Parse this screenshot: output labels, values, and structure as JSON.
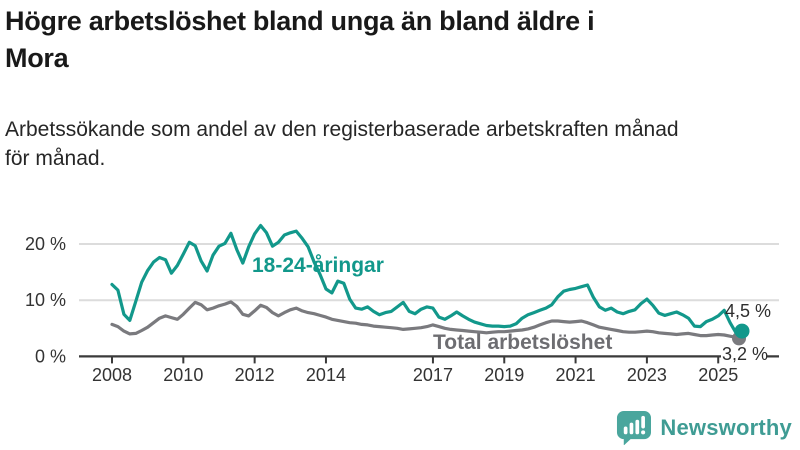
{
  "page": {
    "title_line1": "Högre arbetslöshet bland unga än bland äldre i",
    "title_line2": "Mora",
    "subtitle_line1": "Arbetssökande som andel av den registerbaserade arbetskraften månad",
    "subtitle_line2": "för månad."
  },
  "branding": {
    "logo_text": "Newsworthy",
    "logo_color": "#3f9c94",
    "logo_icon_color": "#4aa69d",
    "logo_icon": "speech-bubble-bar-chart-icon"
  },
  "chart_data": {
    "type": "line",
    "title": "Högre arbetslöshet bland unga än bland äldre i Mora",
    "subtitle": "Arbetssökande som andel av den registerbaserade arbetskraften månad för månad.",
    "xlabel": "",
    "ylabel": "",
    "unit": "%",
    "x_start_year": 2008,
    "x_step_months": 2,
    "x_end_year_approx": 2025.67,
    "ylim": [
      0,
      25
    ],
    "grid": "horizontal",
    "legend_position": "inline-labels",
    "axis_color": "#3a3a3a",
    "grid_color": "#dcdcdc",
    "yticks": [
      {
        "value": 0,
        "label": "0 %"
      },
      {
        "value": 10,
        "label": "10 %"
      },
      {
        "value": 20,
        "label": "20 %"
      }
    ],
    "xticks": [
      2008,
      2010,
      2012,
      2014,
      2017,
      2019,
      2021,
      2023,
      2025
    ],
    "series": [
      {
        "name": "18-24-åringar",
        "color": "#12988b",
        "label_color": "#12988b",
        "end_label": "4,5 %",
        "end_value": 4.5,
        "values": [
          12.8,
          11.8,
          7.5,
          6.4,
          9.8,
          13.2,
          15.3,
          16.8,
          17.6,
          17.2,
          14.8,
          16.2,
          18.2,
          20.3,
          19.7,
          17.0,
          15.2,
          18.0,
          19.6,
          20.1,
          21.9,
          19.0,
          16.6,
          19.5,
          21.8,
          23.3,
          22.0,
          19.6,
          20.3,
          21.6,
          22.0,
          22.3,
          21.0,
          19.5,
          16.8,
          14.6,
          12.0,
          11.3,
          13.4,
          13.0,
          10.2,
          8.6,
          8.4,
          8.8,
          8.0,
          7.4,
          7.8,
          8.0,
          8.8,
          9.6,
          8.0,
          7.6,
          8.4,
          8.8,
          8.6,
          7.0,
          6.6,
          7.2,
          7.9,
          7.2,
          6.6,
          6.1,
          5.8,
          5.5,
          5.4,
          5.4,
          5.3,
          5.4,
          5.8,
          6.8,
          7.4,
          7.8,
          8.2,
          8.6,
          9.2,
          10.6,
          11.6,
          11.9,
          12.1,
          12.4,
          12.7,
          10.5,
          8.8,
          8.2,
          8.6,
          7.9,
          7.6,
          8.0,
          8.3,
          9.4,
          10.2,
          9.1,
          7.7,
          7.3,
          7.6,
          7.9,
          7.4,
          6.8,
          5.4,
          5.3,
          6.2,
          6.6,
          7.2,
          8.2,
          6.0,
          4.2,
          4.5
        ]
      },
      {
        "name": "Total arbetslöshet",
        "color": "#7a7a7e",
        "label_color": "#6d6d71",
        "end_label": "3,2 %",
        "end_value": 3.2,
        "values": [
          5.7,
          5.3,
          4.5,
          4.0,
          4.1,
          4.6,
          5.2,
          6.0,
          6.8,
          7.2,
          6.9,
          6.6,
          7.5,
          8.6,
          9.6,
          9.2,
          8.3,
          8.6,
          9.0,
          9.3,
          9.7,
          8.9,
          7.5,
          7.2,
          8.1,
          9.1,
          8.7,
          7.8,
          7.2,
          7.8,
          8.3,
          8.6,
          8.1,
          7.8,
          7.6,
          7.3,
          7.0,
          6.6,
          6.4,
          6.2,
          6.0,
          5.9,
          5.7,
          5.6,
          5.4,
          5.3,
          5.2,
          5.1,
          5.0,
          4.8,
          4.9,
          5.0,
          5.1,
          5.3,
          5.6,
          5.3,
          5.0,
          4.8,
          4.7,
          4.6,
          4.5,
          4.4,
          4.3,
          4.2,
          4.3,
          4.4,
          4.4,
          4.5,
          4.6,
          4.7,
          4.9,
          5.2,
          5.6,
          6.0,
          6.3,
          6.3,
          6.2,
          6.1,
          6.2,
          6.3,
          6.0,
          5.6,
          5.2,
          5.0,
          4.8,
          4.6,
          4.4,
          4.3,
          4.3,
          4.4,
          4.5,
          4.4,
          4.2,
          4.1,
          4.0,
          3.9,
          4.0,
          4.1,
          3.9,
          3.7,
          3.7,
          3.8,
          3.9,
          3.8,
          3.6,
          3.4,
          3.2
        ]
      }
    ]
  }
}
